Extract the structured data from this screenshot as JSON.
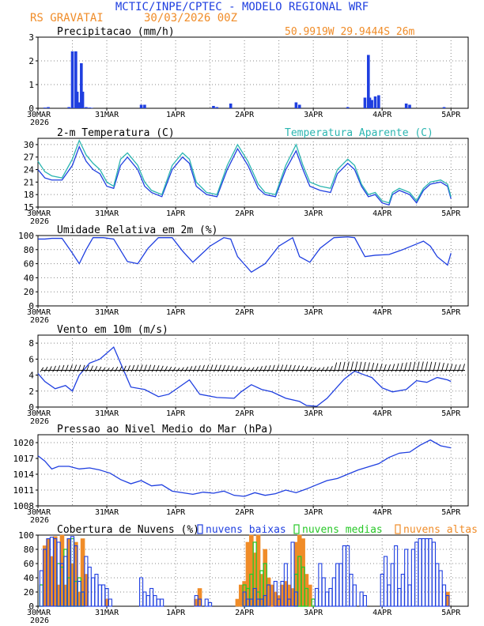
{
  "header": {
    "title": "MCTIC/INPE/CPTEC - MODELO REGIONAL WRF",
    "location": "RS GRAVATAI",
    "run": "30/03/2026 00Z",
    "coords": "50.9919W 29.9444S 26m"
  },
  "colors": {
    "blue": "#1f3fe0",
    "teal": "#2ab5b0",
    "orange": "#f08c28",
    "green": "#28c828",
    "title": "#1f3fe0",
    "sub": "#f08c28"
  },
  "x_ticks": [
    "30MAR",
    "31MAR",
    "1APR",
    "2APR",
    "3APR",
    "4APR",
    "5APR"
  ],
  "x_year": "2026",
  "chart_data": [
    {
      "type": "bar",
      "title": "Precipitacao (mm/h)",
      "ylim": [
        0,
        3
      ],
      "yticks": [
        "0",
        "1",
        "2",
        "3"
      ],
      "x": [
        0.1,
        0.15,
        0.45,
        0.5,
        0.55,
        0.57,
        0.6,
        0.63,
        0.65,
        0.7,
        0.75,
        0.78,
        1.5,
        1.55,
        2.55,
        2.6,
        2.8,
        3.75,
        3.8,
        4.5,
        4.75,
        4.8,
        4.82,
        4.85,
        4.9,
        4.95,
        5.35,
        5.4,
        5.9
      ],
      "values": [
        0.03,
        0.05,
        0.05,
        2.4,
        2.4,
        0.7,
        0.25,
        1.9,
        0.7,
        0.05,
        0.03,
        0.02,
        0.15,
        0.15,
        0.1,
        0.05,
        0.2,
        0.25,
        0.15,
        0.05,
        0.45,
        2.25,
        0.45,
        0.35,
        0.5,
        0.55,
        0.2,
        0.15,
        0.05
      ]
    },
    {
      "type": "line",
      "title": "2-m Temperatura (C)",
      "legend": "Temperatura Aparente (C)",
      "ylim": [
        15,
        31.5
      ],
      "yticks": [
        "15",
        "18",
        "21",
        "24",
        "27",
        "30"
      ],
      "series": [
        {
          "name": "Temperatura (C)",
          "x": [
            0,
            0.1,
            0.2,
            0.35,
            0.5,
            0.6,
            0.7,
            0.8,
            0.9,
            1.0,
            1.1,
            1.2,
            1.3,
            1.45,
            1.55,
            1.65,
            1.8,
            1.95,
            2.1,
            2.2,
            2.3,
            2.45,
            2.6,
            2.75,
            2.9,
            3.05,
            3.2,
            3.3,
            3.45,
            3.6,
            3.75,
            3.85,
            3.95,
            4.1,
            4.25,
            4.35,
            4.5,
            4.6,
            4.7,
            4.8,
            4.9,
            5.0,
            5.1,
            5.15,
            5.25,
            5.4,
            5.5,
            5.6,
            5.7,
            5.85,
            5.95,
            6.0
          ],
          "values": [
            24,
            22,
            21.5,
            21.5,
            25,
            29.5,
            26,
            24,
            23,
            20,
            19.5,
            25,
            27,
            24,
            20,
            18.5,
            17.5,
            24,
            27,
            25.5,
            20,
            18,
            17.5,
            24,
            29,
            25,
            19.5,
            18,
            17.5,
            24,
            28.5,
            24,
            20,
            19,
            18.5,
            23,
            25.5,
            24,
            20,
            17.5,
            18,
            16,
            15.5,
            18,
            19,
            18,
            16,
            19,
            20.5,
            21,
            20,
            17
          ]
        },
        {
          "name": "Temperatura Aparente (C)",
          "x": [
            0,
            0.1,
            0.2,
            0.35,
            0.5,
            0.6,
            0.7,
            0.8,
            0.9,
            1.0,
            1.1,
            1.2,
            1.3,
            1.45,
            1.55,
            1.65,
            1.8,
            1.95,
            2.1,
            2.2,
            2.3,
            2.45,
            2.6,
            2.75,
            2.9,
            3.05,
            3.2,
            3.3,
            3.45,
            3.6,
            3.75,
            3.85,
            3.95,
            4.1,
            4.25,
            4.35,
            4.5,
            4.6,
            4.7,
            4.8,
            4.9,
            5.0,
            5.1,
            5.15,
            5.25,
            5.4,
            5.5,
            5.6,
            5.7,
            5.85,
            5.95,
            6.0
          ],
          "values": [
            26,
            23.5,
            22.5,
            22,
            26.5,
            31,
            27.5,
            25.5,
            24,
            21,
            20,
            26.5,
            28,
            25,
            21,
            19,
            18,
            25,
            28,
            26.5,
            21,
            18.5,
            18,
            25,
            30,
            26,
            20.5,
            18.5,
            18,
            25,
            30,
            25,
            21,
            20,
            19.5,
            24,
            26.5,
            25,
            20.5,
            18,
            18.5,
            16.5,
            16,
            18.5,
            19.5,
            18.5,
            16.5,
            19.5,
            21,
            21.5,
            20.5,
            17.5
          ]
        }
      ]
    },
    {
      "type": "line",
      "title": "Umidade Relativa em 2m (%)",
      "ylim": [
        0,
        100
      ],
      "yticks": [
        "0",
        "20",
        "40",
        "60",
        "80",
        "100"
      ],
      "series": [
        {
          "name": "Umidade Relativa",
          "x": [
            0,
            0.1,
            0.2,
            0.35,
            0.5,
            0.6,
            0.7,
            0.8,
            0.95,
            1.1,
            1.3,
            1.45,
            1.6,
            1.75,
            1.95,
            2.1,
            2.25,
            2.5,
            2.7,
            2.8,
            2.9,
            3.1,
            3.3,
            3.5,
            3.7,
            3.8,
            3.95,
            4.1,
            4.3,
            4.5,
            4.6,
            4.75,
            4.9,
            5.1,
            5.3,
            5.5,
            5.6,
            5.7,
            5.8,
            5.95,
            6.0
          ],
          "values": [
            95,
            95,
            96,
            96,
            75,
            60,
            80,
            97,
            97,
            95,
            63,
            60,
            82,
            97,
            97,
            78,
            62,
            85,
            97,
            95,
            70,
            48,
            60,
            85,
            97,
            70,
            62,
            82,
            97,
            98,
            97,
            70,
            72,
            73,
            80,
            88,
            92,
            85,
            70,
            58,
            75
          ]
        }
      ]
    },
    {
      "type": "line",
      "title": "Vento em 10m (m/s)",
      "ylim": [
        0,
        9
      ],
      "yticks": [
        "0",
        "2",
        "4",
        "6",
        "8"
      ],
      "series": [
        {
          "name": "Vento",
          "x": [
            0,
            0.1,
            0.25,
            0.4,
            0.5,
            0.6,
            0.75,
            0.9,
            1.1,
            1.25,
            1.35,
            1.55,
            1.75,
            1.9,
            2.05,
            2.2,
            2.35,
            2.6,
            2.85,
            2.95,
            3.1,
            3.25,
            3.4,
            3.6,
            3.8,
            3.9,
            4.05,
            4.2,
            4.45,
            4.6,
            4.75,
            4.85,
            5.0,
            5.15,
            5.35,
            5.5,
            5.65,
            5.8,
            5.95,
            6.0
          ],
          "values": [
            4.2,
            3.2,
            2.3,
            2.7,
            2.0,
            4.0,
            5.5,
            6.0,
            7.5,
            4.5,
            2.5,
            2.2,
            1.3,
            1.6,
            2.5,
            3.4,
            1.6,
            1.2,
            1.1,
            1.9,
            2.8,
            2.2,
            1.9,
            1.1,
            0.7,
            0.2,
            0.1,
            1.1,
            3.5,
            4.5,
            4.0,
            3.7,
            2.4,
            1.9,
            2.2,
            3.3,
            3.1,
            3.7,
            3.4,
            3.2
          ]
        }
      ]
    },
    {
      "type": "line",
      "title": "Pressao ao Nivel Medio do Mar (hPa)",
      "ylim": [
        1008,
        1021.5
      ],
      "yticks": [
        "1008",
        "1011",
        "1014",
        "1017",
        "1020"
      ],
      "series": [
        {
          "name": "Pressao",
          "x": [
            0,
            0.1,
            0.2,
            0.3,
            0.45,
            0.6,
            0.75,
            0.9,
            1.05,
            1.2,
            1.35,
            1.5,
            1.65,
            1.8,
            1.95,
            2.1,
            2.25,
            2.4,
            2.55,
            2.7,
            2.85,
            3.0,
            3.15,
            3.3,
            3.45,
            3.6,
            3.75,
            3.9,
            4.05,
            4.2,
            4.35,
            4.5,
            4.65,
            4.8,
            4.95,
            5.1,
            5.25,
            5.4,
            5.55,
            5.7,
            5.85,
            6.0
          ],
          "values": [
            1017.5,
            1016.5,
            1015,
            1015.5,
            1015.5,
            1015,
            1015.2,
            1014.8,
            1014.2,
            1013,
            1012.2,
            1012.8,
            1011.8,
            1012,
            1010.8,
            1010.5,
            1010.2,
            1010.6,
            1010.4,
            1010.8,
            1010,
            1009.8,
            1010.5,
            1010,
            1010.3,
            1011,
            1010.5,
            1011.2,
            1012,
            1012.8,
            1013.2,
            1014,
            1014.8,
            1015.4,
            1016,
            1017.2,
            1018,
            1018.2,
            1019.5,
            1020.5,
            1019.4,
            1019
          ]
        }
      ]
    },
    {
      "type": "bar",
      "title": "Cobertura de Nuvens (%)",
      "ylim": [
        0,
        100
      ],
      "yticks": [
        "0",
        "20",
        "40",
        "60",
        "80",
        "100"
      ],
      "legend": [
        "nuvens baixas",
        "nuvens medias",
        "nuvens altas"
      ],
      "series": [
        {
          "name": "nuvens baixas",
          "x": [
            0.05,
            0.1,
            0.15,
            0.2,
            0.25,
            0.3,
            0.35,
            0.4,
            0.45,
            0.5,
            0.55,
            0.6,
            0.65,
            0.7,
            0.75,
            0.8,
            0.85,
            0.9,
            0.95,
            1.0,
            1.05,
            1.5,
            1.55,
            1.6,
            1.65,
            1.7,
            1.75,
            1.8,
            2.3,
            2.35,
            2.45,
            2.5,
            3.0,
            3.05,
            3.1,
            3.15,
            3.2,
            3.25,
            3.3,
            3.35,
            3.45,
            3.5,
            3.55,
            3.6,
            3.65,
            3.7,
            3.75,
            4.05,
            4.1,
            4.15,
            4.2,
            4.25,
            4.3,
            4.35,
            4.4,
            4.45,
            4.5,
            4.55,
            4.6,
            4.7,
            4.75,
            5.0,
            5.05,
            5.1,
            5.15,
            5.2,
            5.25,
            5.3,
            5.35,
            5.4,
            5.45,
            5.5,
            5.55,
            5.6,
            5.65,
            5.7,
            5.75,
            5.8,
            5.85,
            5.9,
            5.95
          ],
          "values": [
            50,
            80,
            95,
            97,
            95,
            90,
            60,
            70,
            95,
            98,
            85,
            35,
            20,
            70,
            55,
            40,
            45,
            30,
            30,
            25,
            10,
            40,
            20,
            15,
            25,
            15,
            10,
            10,
            15,
            10,
            10,
            5,
            20,
            10,
            10,
            25,
            10,
            10,
            15,
            30,
            35,
            10,
            35,
            60,
            10,
            90,
            20,
            25,
            60,
            40,
            20,
            25,
            40,
            60,
            60,
            85,
            85,
            45,
            30,
            20,
            15,
            45,
            70,
            30,
            60,
            85,
            25,
            45,
            80,
            30,
            80,
            90,
            95,
            95,
            95,
            95,
            90,
            60,
            50,
            30,
            15
          ]
        },
        {
          "name": "nuvens medias",
          "x": [
            0.05,
            0.3,
            0.35,
            0.4,
            0.45,
            0.5,
            0.55,
            0.6,
            0.65,
            3.0,
            3.05,
            3.1,
            3.15,
            3.2,
            3.25,
            3.3,
            3.75,
            3.8,
            3.85,
            3.9,
            4.0
          ],
          "values": [
            30,
            60,
            55,
            80,
            40,
            95,
            35,
            40,
            20,
            30,
            25,
            45,
            90,
            20,
            50,
            60,
            45,
            70,
            55,
            25,
            10
          ]
        },
        {
          "name": "nuvens altas",
          "x": [
            0.1,
            0.15,
            0.2,
            0.25,
            0.3,
            0.35,
            0.4,
            0.45,
            0.5,
            0.55,
            0.6,
            0.65,
            0.7,
            1.0,
            2.3,
            2.35,
            2.9,
            2.95,
            3.0,
            3.05,
            3.1,
            3.15,
            3.2,
            3.25,
            3.3,
            3.35,
            3.4,
            3.45,
            3.5,
            3.55,
            3.6,
            3.65,
            3.7,
            3.75,
            3.8,
            3.85,
            3.9,
            3.95,
            5.95
          ],
          "values": [
            85,
            95,
            70,
            98,
            30,
            100,
            30,
            95,
            60,
            90,
            20,
            95,
            45,
            10,
            10,
            25,
            10,
            30,
            35,
            90,
            100,
            75,
            100,
            45,
            80,
            40,
            30,
            20,
            15,
            30,
            35,
            30,
            25,
            90,
            100,
            95,
            45,
            30,
            20
          ]
        }
      ]
    }
  ]
}
